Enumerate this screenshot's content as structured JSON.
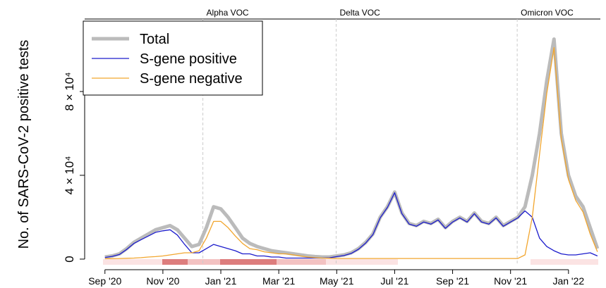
{
  "chart_data": {
    "type": "line",
    "ylabel": "No. of SARS-CoV-2 positive tests",
    "x": [
      0,
      0.25,
      0.5,
      0.75,
      1,
      1.25,
      1.5,
      1.75,
      2,
      2.25,
      2.5,
      2.75,
      3,
      3.25,
      3.5,
      3.75,
      4,
      4.25,
      4.5,
      4.75,
      5,
      5.25,
      5.5,
      5.75,
      6,
      6.25,
      6.5,
      6.75,
      7,
      7.25,
      7.5,
      7.75,
      8,
      8.25,
      8.5,
      8.75,
      9,
      9.25,
      9.5,
      9.75,
      10,
      10.25,
      10.5,
      10.75,
      11,
      11.25,
      11.5,
      11.75,
      12,
      12.25,
      12.5,
      12.75,
      13,
      13.25,
      13.5,
      13.75,
      14,
      14.25,
      14.5,
      14.75,
      15,
      15.25,
      15.5,
      15.75,
      16,
      16.25,
      16.5,
      16.75,
      17
    ],
    "series": [
      {
        "name": "Total",
        "color": "#bbbbbb",
        "values": [
          1000,
          1500,
          2500,
          5000,
          8000,
          10000,
          12000,
          14000,
          15000,
          16000,
          14000,
          10000,
          6000,
          7000,
          15000,
          25000,
          24000,
          20000,
          15000,
          10000,
          7500,
          6000,
          5000,
          4000,
          3500,
          3000,
          2500,
          2000,
          1500,
          1200,
          1000,
          1000,
          1500,
          2000,
          3000,
          5000,
          8000,
          12000,
          20000,
          25000,
          32000,
          22000,
          17000,
          16000,
          18000,
          17000,
          19000,
          15000,
          18000,
          20000,
          18000,
          22000,
          18000,
          17000,
          20000,
          16000,
          18000,
          20000,
          25000,
          40000,
          60000,
          85000,
          105000,
          60000,
          40000,
          30000,
          25000,
          15000,
          5000
        ]
      },
      {
        "name": "S-gene positive",
        "color": "#1c1ccc",
        "values": [
          800,
          1300,
          2200,
          4600,
          7500,
          9300,
          11000,
          12800,
          13500,
          14000,
          11500,
          7000,
          3000,
          3000,
          5000,
          7000,
          6000,
          5000,
          4000,
          2500,
          2500,
          1500,
          1500,
          1000,
          1000,
          500,
          500,
          500,
          500,
          500,
          500,
          600,
          1200,
          1700,
          2700,
          4700,
          7700,
          11700,
          19700,
          24700,
          31700,
          21700,
          16700,
          15700,
          17700,
          16700,
          18700,
          14700,
          17700,
          19700,
          17700,
          21700,
          17700,
          16700,
          19700,
          15700,
          17700,
          19700,
          23000,
          20000,
          10000,
          6000,
          4000,
          2500,
          2000,
          2000,
          2500,
          3000,
          1500
        ]
      },
      {
        "name": "S-gene negative",
        "color": "#f2a62e",
        "values": [
          200,
          200,
          300,
          400,
          500,
          700,
          1000,
          1200,
          1500,
          2000,
          2500,
          3000,
          3000,
          4000,
          10000,
          18000,
          18000,
          15000,
          11000,
          7500,
          5000,
          4500,
          3500,
          3000,
          2500,
          2500,
          2000,
          1500,
          1000,
          700,
          500,
          400,
          300,
          300,
          300,
          300,
          300,
          300,
          300,
          300,
          300,
          300,
          300,
          300,
          300,
          300,
          300,
          300,
          300,
          300,
          300,
          300,
          300,
          300,
          300,
          300,
          300,
          300,
          2000,
          20000,
          50000,
          79000,
          101000,
          57500,
          38000,
          28000,
          22500,
          12000,
          3500
        ]
      }
    ],
    "xlim": [
      -0.7,
      17.1
    ],
    "xticks": [
      {
        "value": 0,
        "label": "Sep '20"
      },
      {
        "value": 2,
        "label": "Nov '20"
      },
      {
        "value": 4,
        "label": "Jan '21"
      },
      {
        "value": 6,
        "label": "Mar '21"
      },
      {
        "value": 8,
        "label": "May '21"
      },
      {
        "value": 10,
        "label": "Jul '21"
      },
      {
        "value": 12,
        "label": "Sep '21"
      },
      {
        "value": 14,
        "label": "Nov '21"
      },
      {
        "value": 16,
        "label": "Jan '22"
      }
    ],
    "ylim": [
      -2700,
      114600
    ],
    "yticks": [
      0,
      {
        "value": 40000,
        "label": "4 × 10⁴"
      },
      {
        "value": 80000,
        "label": "8 × 10⁴"
      }
    ],
    "vlines": [
      {
        "label": "Alpha VOC",
        "x": 3.38
      },
      {
        "label": "Delta VOC",
        "x": 7.98
      },
      {
        "label": "Omicron VOC",
        "x": 14.23
      }
    ],
    "legend": "top-left"
  }
}
